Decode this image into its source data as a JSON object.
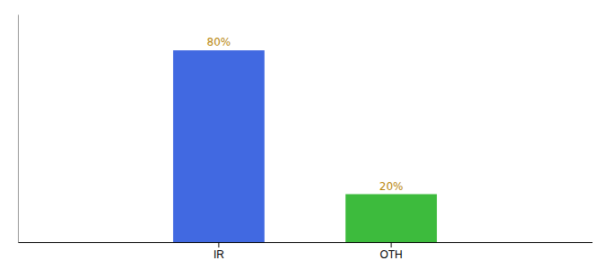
{
  "chart_data": {
    "type": "bar",
    "categories": [
      "IR",
      "OTH"
    ],
    "values": [
      80,
      20
    ],
    "colors": [
      "#4169e1",
      "#3dbb3d"
    ],
    "data_labels": true,
    "value_labels": [
      "80%",
      "20%"
    ],
    "ylim": [
      0,
      95
    ],
    "tick_labels": "x",
    "grid": false
  }
}
